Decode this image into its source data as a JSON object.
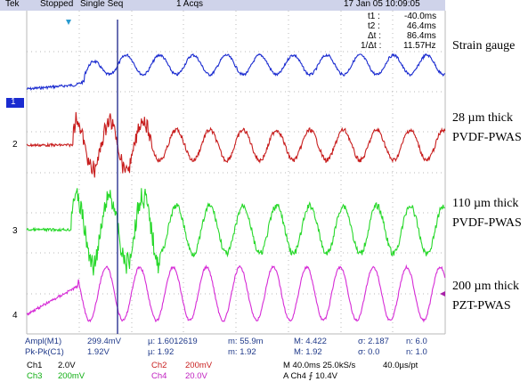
{
  "header": {
    "brand": "Tek",
    "status": "Stopped",
    "mode": "Single Seq",
    "acqs": "1 Acqs",
    "datetime": "17 Jan 05 10:09:05"
  },
  "cursor_readout": [
    {
      "label": "t1 :",
      "value": "-40.0ms"
    },
    {
      "label": "t2 :",
      "value": "46.4ms"
    },
    {
      "label": "Δt :",
      "value": "86.4ms"
    },
    {
      "label": "1/Δt :",
      "value": "11.57Hz"
    }
  ],
  "channel_markers": [
    "1",
    "2",
    "3",
    "4"
  ],
  "waveform_labels": {
    "strain": [
      "Strain gauge"
    ],
    "pvdf28": [
      "28 µm thick",
      "PVDF-PWAS"
    ],
    "pvdf110": [
      "110 µm thick",
      "PVDF-PWAS"
    ],
    "pzt": [
      "200 µm thick",
      "PZT-PWAS"
    ]
  },
  "measurements": {
    "row1": [
      "Ampl(M1)",
      "299.4mV",
      "µ: 1.6012619",
      "m: 55.9m",
      "M: 4.422",
      "σ: 2.187",
      "n: 6.0"
    ],
    "row2": [
      "Pk-Pk(C1)",
      "1.92V",
      "µ: 1.92",
      "m: 1.92",
      "M: 1.92",
      "σ: 0.0",
      "n: 1.0"
    ]
  },
  "channel_settings": {
    "ch1": "Ch1",
    "ch1_scale": "2.0V",
    "ch2": "Ch2",
    "ch2_scale": "200mV",
    "ch3": "Ch3",
    "ch3_scale": "200mV",
    "ch4": "Ch4",
    "ch4_scale": "20.0V",
    "timebase": "M 40.0ms 25.0kS/s",
    "resolution": "40.0µs/pt",
    "trigger": "A  Ch4  ⨍  10.4V"
  },
  "colors": {
    "ch1": "#1a2bd0",
    "ch2": "#c81e1e",
    "ch3": "#27d82a",
    "ch4": "#d62bd6",
    "grid": "#b8b8b8",
    "cursor": "#1a2488"
  }
}
